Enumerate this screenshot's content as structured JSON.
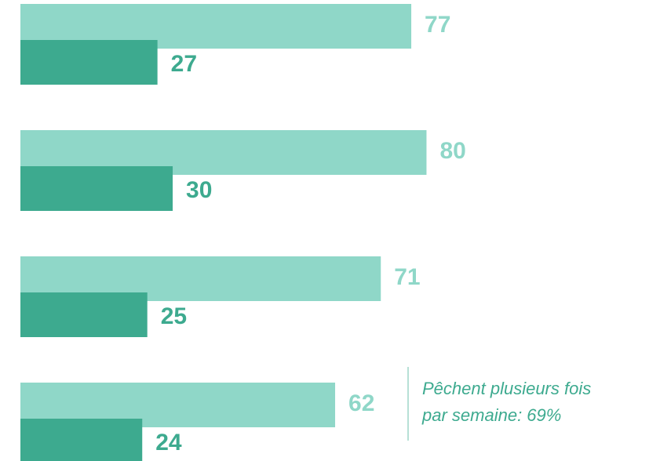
{
  "chart_data": {
    "type": "bar",
    "orientation": "horizontal",
    "categories": [
      null,
      null,
      null,
      null
    ],
    "series": [
      {
        "color": "#8fd7c8",
        "values": [
          77,
          80,
          71,
          62
        ]
      },
      {
        "color": "#3daa8f",
        "values": [
          27,
          30,
          25,
          24
        ]
      }
    ],
    "xlim": [
      0,
      126
    ],
    "annotation": [
      "Pêchent plusieurs fois",
      "par semaine: 69%"
    ],
    "annotation_color": "#3daa8f"
  }
}
